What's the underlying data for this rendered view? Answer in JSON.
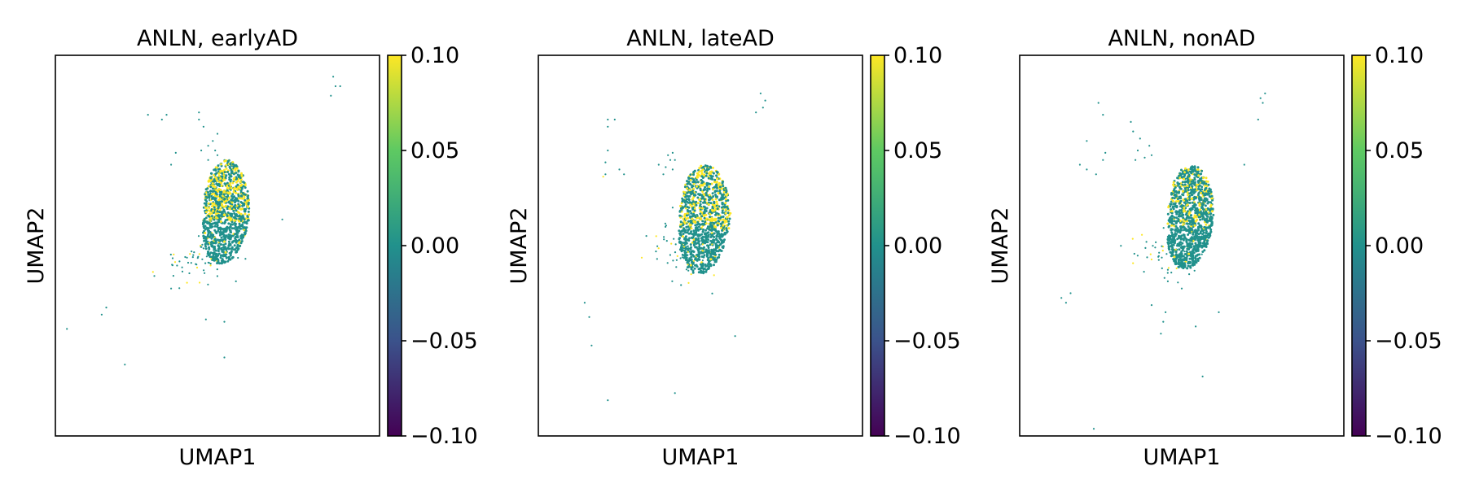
{
  "figure": {
    "colormap": "viridis",
    "colormap_stops": [
      "#440154",
      "#3b528b",
      "#21918c",
      "#5ec962",
      "#fde725"
    ],
    "background_point_color": "#2a9a8c",
    "high_point_color": "#fde725"
  },
  "chart_data": [
    {
      "type": "scatter",
      "title": "ANLN, earlyAD",
      "xlabel": "UMAP1",
      "ylabel": "UMAP2",
      "x_ticks": "none",
      "y_ticks": "none",
      "grid": false,
      "colorbar": {
        "range": [
          -0.1,
          0.1
        ],
        "ticks": [
          0.1,
          0.05,
          0.0,
          -0.05,
          -0.1
        ],
        "tick_labels": [
          "0.10",
          "0.05",
          "0.00",
          "−0.05",
          "−0.10"
        ]
      },
      "cluster": {
        "center": [
          7.4,
          5.4
        ],
        "radius": [
          1.0,
          2.2
        ],
        "expression_level": 0.1,
        "expressed_fraction": 0.35,
        "points": 1100
      },
      "tail": {
        "center": [
          6.2,
          3.3
        ],
        "spread": [
          0.8,
          0.5
        ],
        "points": 60
      },
      "points": [
        [
          12.0,
          11.1,
          0
        ],
        [
          12.1,
          10.7,
          0
        ],
        [
          12.3,
          10.7,
          0
        ],
        [
          11.9,
          10.3,
          0
        ],
        [
          4.0,
          9.5,
          0
        ],
        [
          4.8,
          9.5,
          0
        ],
        [
          4.6,
          9.3,
          0
        ],
        [
          6.2,
          9.6,
          0
        ],
        [
          6.2,
          9.3,
          0
        ],
        [
          6.4,
          9.0,
          0
        ],
        [
          7.0,
          8.7,
          0
        ],
        [
          6.8,
          8.4,
          0
        ],
        [
          6.6,
          8.2,
          0
        ],
        [
          6.3,
          8.0,
          0
        ],
        [
          6.9,
          8.0,
          0
        ],
        [
          5.2,
          7.9,
          0
        ],
        [
          5.0,
          7.4,
          0
        ],
        [
          6.6,
          7.6,
          0
        ],
        [
          7.0,
          7.8,
          0
        ],
        [
          9.8,
          5.1,
          0
        ],
        [
          7.8,
          2.5,
          0
        ],
        [
          5.0,
          2.2,
          0
        ],
        [
          2.2,
          1.4,
          0
        ],
        [
          2.0,
          1.1,
          0
        ],
        [
          6.5,
          0.9,
          0
        ],
        [
          7.3,
          0.8,
          0
        ],
        [
          0.5,
          0.5,
          0
        ],
        [
          7.3,
          -0.7,
          0
        ],
        [
          3.0,
          -1.0,
          0
        ]
      ]
    },
    {
      "type": "scatter",
      "title": "ANLN, lateAD",
      "xlabel": "UMAP1",
      "ylabel": "UMAP2",
      "x_ticks": "none",
      "y_ticks": "none",
      "grid": false,
      "colorbar": {
        "range": [
          -0.1,
          0.1
        ],
        "ticks": [
          0.1,
          0.05,
          0.0,
          -0.05,
          -0.1
        ],
        "tick_labels": [
          "0.10",
          "0.05",
          "0.00",
          "−0.05",
          "−0.10"
        ]
      },
      "cluster": {
        "center": [
          7.2,
          5.1
        ],
        "radius": [
          1.1,
          2.3
        ],
        "expression_level": 0.1,
        "expressed_fraction": 0.33,
        "points": 1100
      },
      "tail": {
        "center": [
          6.1,
          3.7
        ],
        "spread": [
          0.7,
          0.6
        ],
        "points": 50
      },
      "points": [
        [
          9.6,
          10.4,
          0
        ],
        [
          9.8,
          10.1,
          0
        ],
        [
          9.7,
          9.8,
          0
        ],
        [
          9.4,
          9.6,
          0
        ],
        [
          3.0,
          9.3,
          0
        ],
        [
          3.3,
          9.3,
          0
        ],
        [
          3.0,
          9.0,
          0
        ],
        [
          3.0,
          8.0,
          0
        ],
        [
          2.9,
          7.5,
          0
        ],
        [
          3.5,
          7.2,
          0
        ],
        [
          3.7,
          7.0,
          0
        ],
        [
          2.9,
          7.0,
          0
        ],
        [
          2.8,
          6.9,
          0.1
        ],
        [
          5.6,
          7.8,
          0
        ],
        [
          5.8,
          7.9,
          0
        ],
        [
          5.9,
          7.6,
          0
        ],
        [
          5.2,
          7.4,
          0
        ],
        [
          5.5,
          7.3,
          0
        ],
        [
          5.8,
          7.2,
          0
        ],
        [
          5.4,
          7.0,
          0
        ],
        [
          5.7,
          7.6,
          0
        ],
        [
          5.8,
          5.6,
          0
        ],
        [
          6.4,
          3.0,
          0
        ],
        [
          6.6,
          2.8,
          0.1
        ],
        [
          2.0,
          1.6,
          0
        ],
        [
          2.2,
          1.0,
          0
        ],
        [
          2.3,
          -0.2,
          0
        ],
        [
          8.5,
          0.2,
          0
        ],
        [
          5.9,
          -2.2,
          0
        ],
        [
          3.0,
          -2.5,
          0
        ]
      ]
    },
    {
      "type": "scatter",
      "title": "ANLN, nonAD",
      "xlabel": "UMAP1",
      "ylabel": "UMAP2",
      "x_ticks": "none",
      "y_ticks": "none",
      "grid": false,
      "colorbar": {
        "range": [
          -0.1,
          0.1
        ],
        "ticks": [
          0.1,
          0.05,
          0.0,
          -0.05,
          -0.1
        ],
        "tick_labels": [
          "0.10",
          "0.05",
          "0.00",
          "−0.05",
          "−0.10"
        ]
      },
      "cluster": {
        "center": [
          7.4,
          5.2
        ],
        "radius": [
          1.0,
          2.2
        ],
        "expression_level": 0.1,
        "expressed_fraction": 0.22,
        "points": 1100
      },
      "tail": {
        "center": [
          6.3,
          3.5
        ],
        "spread": [
          0.8,
          0.5
        ],
        "points": 45
      },
      "points": [
        [
          10.4,
          10.2,
          0
        ],
        [
          10.6,
          10.4,
          0
        ],
        [
          10.5,
          10.0,
          0
        ],
        [
          10.3,
          9.3,
          0
        ],
        [
          3.4,
          10.0,
          0
        ],
        [
          3.6,
          9.5,
          0
        ],
        [
          4.8,
          9.2,
          0
        ],
        [
          4.9,
          8.8,
          0
        ],
        [
          5.2,
          8.5,
          0
        ],
        [
          5.1,
          8.0,
          0
        ],
        [
          5.6,
          8.2,
          0
        ],
        [
          5.7,
          7.8,
          0
        ],
        [
          5.4,
          7.7,
          0
        ],
        [
          5.0,
          7.6,
          0
        ],
        [
          2.9,
          8.4,
          0
        ],
        [
          3.7,
          7.9,
          0
        ],
        [
          3.6,
          7.6,
          0
        ],
        [
          2.9,
          7.2,
          0
        ],
        [
          3.3,
          7.0,
          0
        ],
        [
          2.6,
          7.4,
          0
        ],
        [
          9.7,
          7.4,
          0
        ],
        [
          6.7,
          3.3,
          0
        ],
        [
          6.4,
          2.5,
          0
        ],
        [
          7.0,
          2.2,
          0
        ],
        [
          2.2,
          2.0,
          0
        ],
        [
          2.0,
          1.6,
          0
        ],
        [
          1.8,
          1.8,
          0
        ],
        [
          5.7,
          1.5,
          0
        ],
        [
          6.2,
          0.8,
          0
        ],
        [
          6.3,
          1.2,
          0
        ],
        [
          8.6,
          1.2,
          0
        ],
        [
          6.1,
          0.3,
          0
        ],
        [
          7.6,
          0.6,
          0
        ],
        [
          7.9,
          -1.5,
          0
        ],
        [
          3.2,
          -3.7,
          0
        ]
      ]
    }
  ]
}
